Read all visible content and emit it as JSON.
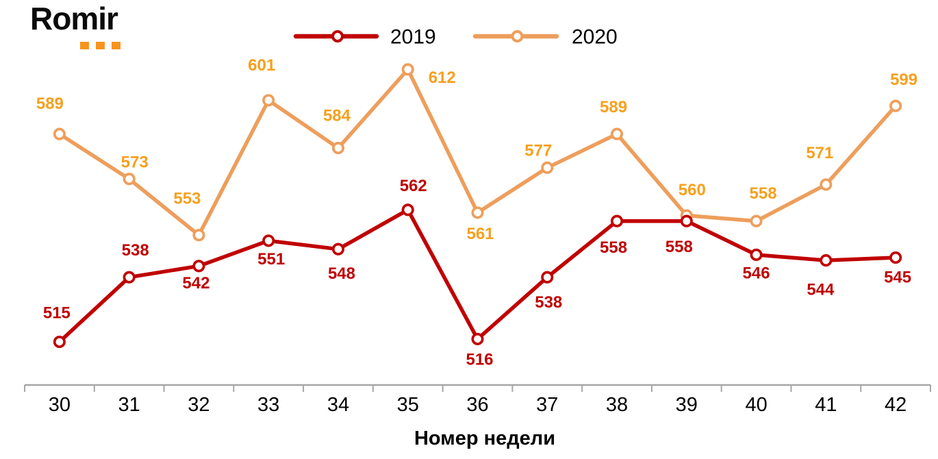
{
  "logo": {
    "text": "Romir",
    "dot_color": "#F7941D"
  },
  "chart_data": {
    "type": "line",
    "xlabel": "Номер недели",
    "x": [
      30,
      31,
      32,
      33,
      34,
      35,
      36,
      37,
      38,
      39,
      40,
      41,
      42
    ],
    "series": [
      {
        "name": "2019",
        "color": "#C00000",
        "label_color": "#C00000",
        "values": [
          515,
          538,
          542,
          551,
          548,
          562,
          516,
          538,
          558,
          558,
          546,
          544,
          545
        ]
      },
      {
        "name": "2020",
        "color": "#EE9E5C",
        "label_color": "#F6A01E",
        "values": [
          589,
          573,
          553,
          601,
          584,
          612,
          561,
          577,
          589,
          560,
          558,
          571,
          599
        ]
      }
    ],
    "legend_position": "top",
    "grid": false,
    "axis_color": "#A6A6A6",
    "tick_label_color": "#000000",
    "marker": "open-circle"
  }
}
